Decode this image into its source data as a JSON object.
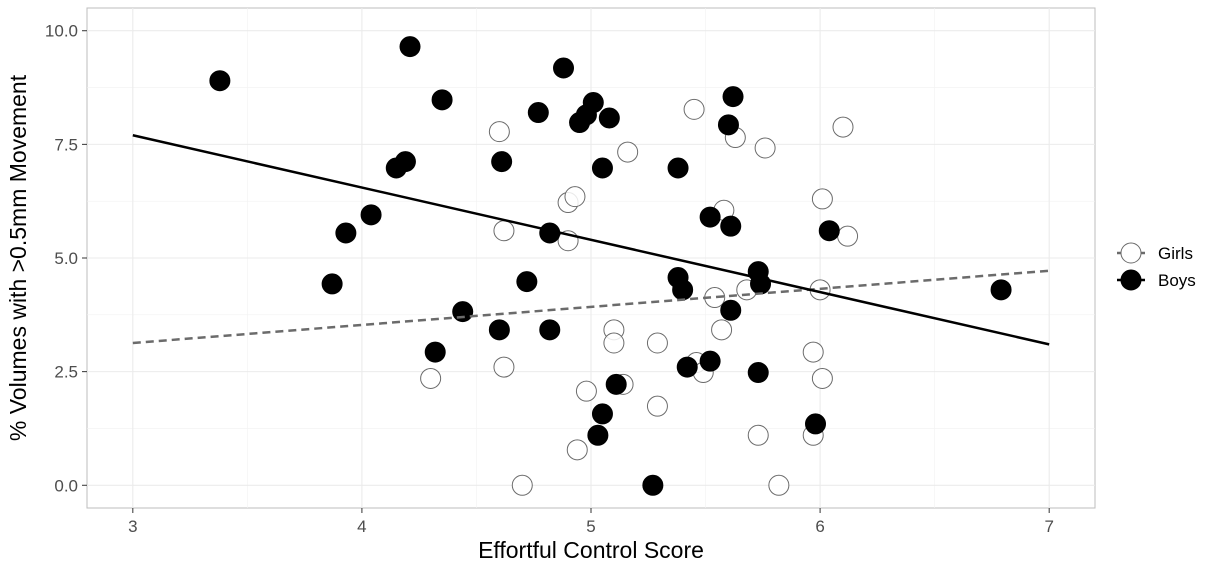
{
  "chart_data": {
    "type": "scatter",
    "xlabel": "Effortful Control Score",
    "ylabel": "% Volumes with >0.5mm Movement",
    "xlim": [
      2.8,
      7.2
    ],
    "ylim": [
      -0.5,
      10.5
    ],
    "x_ticks": [
      3,
      4,
      5,
      6,
      7
    ],
    "y_ticks": [
      0.0,
      2.5,
      5.0,
      7.5,
      10.0
    ],
    "x_tick_labels": [
      "3",
      "4",
      "5",
      "6",
      "7"
    ],
    "y_tick_labels": [
      "0.0",
      "2.5",
      "5.0",
      "7.5",
      "10.0"
    ],
    "grid": true,
    "legend_position": "right",
    "series": [
      {
        "name": "Girls",
        "marker": "open-circle",
        "color": "#6b6b6b",
        "trend": {
          "style": "dashed",
          "x": [
            3,
            7
          ],
          "y": [
            3.13,
            4.72
          ]
        },
        "points": [
          [
            4.3,
            2.35
          ],
          [
            4.6,
            7.78
          ],
          [
            4.62,
            5.6
          ],
          [
            4.62,
            2.6
          ],
          [
            4.7,
            0.0
          ],
          [
            4.9,
            6.22
          ],
          [
            4.9,
            5.38
          ],
          [
            4.93,
            6.35
          ],
          [
            4.94,
            0.78
          ],
          [
            4.98,
            2.07
          ],
          [
            5.1,
            3.42
          ],
          [
            5.1,
            3.13
          ],
          [
            5.14,
            2.22
          ],
          [
            5.16,
            7.33
          ],
          [
            5.29,
            3.13
          ],
          [
            5.29,
            1.74
          ],
          [
            5.45,
            8.27
          ],
          [
            5.46,
            2.7
          ],
          [
            5.49,
            2.48
          ],
          [
            5.54,
            4.13
          ],
          [
            5.58,
            6.05
          ],
          [
            5.57,
            3.42
          ],
          [
            5.63,
            7.65
          ],
          [
            5.68,
            4.3
          ],
          [
            5.73,
            1.1
          ],
          [
            5.76,
            7.42
          ],
          [
            5.82,
            0.0
          ],
          [
            5.97,
            2.93
          ],
          [
            5.97,
            1.1
          ],
          [
            6.0,
            4.3
          ],
          [
            6.01,
            6.3
          ],
          [
            6.01,
            2.35
          ],
          [
            6.1,
            7.88
          ],
          [
            6.12,
            5.48
          ]
        ]
      },
      {
        "name": "Boys",
        "marker": "filled-circle",
        "color": "#000000",
        "trend": {
          "style": "solid",
          "x": [
            3,
            7
          ],
          "y": [
            7.7,
            3.1
          ]
        },
        "points": [
          [
            3.38,
            8.9
          ],
          [
            3.87,
            4.43
          ],
          [
            3.93,
            5.55
          ],
          [
            4.04,
            5.95
          ],
          [
            4.15,
            6.98
          ],
          [
            4.19,
            7.12
          ],
          [
            4.21,
            9.65
          ],
          [
            4.32,
            2.93
          ],
          [
            4.35,
            8.48
          ],
          [
            4.44,
            3.82
          ],
          [
            4.6,
            3.42
          ],
          [
            4.61,
            7.12
          ],
          [
            4.72,
            4.48
          ],
          [
            4.77,
            8.2
          ],
          [
            4.82,
            5.55
          ],
          [
            4.82,
            3.42
          ],
          [
            4.88,
            9.18
          ],
          [
            4.95,
            7.98
          ],
          [
            4.98,
            8.15
          ],
          [
            5.01,
            8.42
          ],
          [
            5.03,
            1.1
          ],
          [
            5.05,
            1.57
          ],
          [
            5.05,
            6.98
          ],
          [
            5.08,
            8.08
          ],
          [
            5.11,
            2.22
          ],
          [
            5.27,
            0.0
          ],
          [
            5.38,
            6.98
          ],
          [
            5.38,
            4.57
          ],
          [
            5.4,
            4.3
          ],
          [
            5.42,
            2.6
          ],
          [
            5.52,
            5.9
          ],
          [
            5.52,
            2.73
          ],
          [
            5.6,
            7.93
          ],
          [
            5.61,
            5.7
          ],
          [
            5.61,
            3.85
          ],
          [
            5.62,
            8.55
          ],
          [
            5.73,
            4.7
          ],
          [
            5.73,
            2.48
          ],
          [
            5.74,
            4.43
          ],
          [
            5.98,
            1.35
          ],
          [
            6.04,
            5.6
          ],
          [
            6.79,
            4.3
          ]
        ]
      }
    ]
  }
}
